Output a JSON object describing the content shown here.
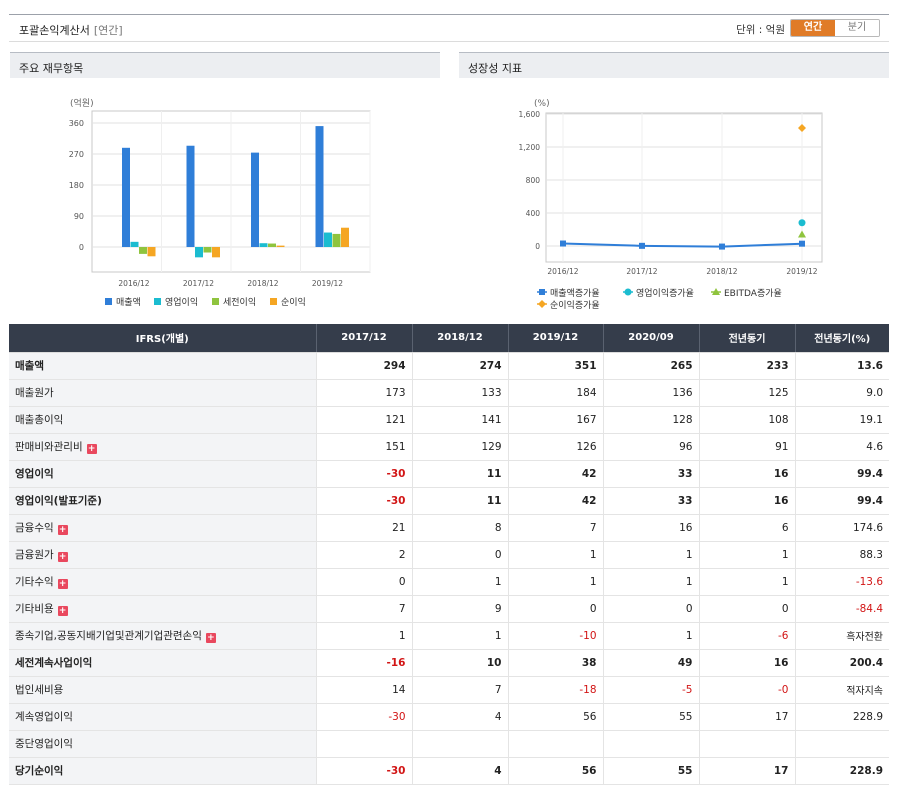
{
  "header": {
    "title": "포괄손익계산서",
    "subtitle": "[연간]",
    "unit_label": "단위 : 억원",
    "toggle": [
      "연간",
      "분기"
    ],
    "toggle_active": 0
  },
  "panel_titles": [
    "주요 재무항목",
    "성장성 지표"
  ],
  "chart_data": [
    {
      "type": "bar",
      "title": "",
      "ylabel": "(억원)",
      "categories": [
        "2016/12",
        "2017/12",
        "2018/12",
        "2019/12"
      ],
      "yticks": [
        "360",
        "270",
        "180",
        "90",
        "0"
      ],
      "ylim": [
        -45,
        390
      ],
      "grid": true,
      "legend_position": "bottom",
      "series": [
        {
          "name": "매출액",
          "color": "#2f7ed8",
          "values": [
            288,
            294,
            274,
            351
          ]
        },
        {
          "name": "영업이익",
          "color": "#1bbcd0",
          "values": [
            15,
            -30,
            11,
            42
          ]
        },
        {
          "name": "세전이익",
          "color": "#8fc43e",
          "values": [
            -20,
            -16,
            10,
            38
          ]
        },
        {
          "name": "순이익",
          "color": "#f5a623",
          "values": [
            -27,
            -30,
            4,
            56
          ]
        }
      ]
    },
    {
      "type": "line",
      "title": "",
      "ylabel": "(%)",
      "categories": [
        "2016/12",
        "2017/12",
        "2018/12",
        "2019/12"
      ],
      "yticks": [
        "1,600",
        "1,200",
        "800",
        "400",
        "0"
      ],
      "ylim": [
        -150,
        1600
      ],
      "grid": true,
      "legend_position": "bottom",
      "series": [
        {
          "name": "매출액증가율",
          "color": "#2f7ed8",
          "marker": "square",
          "values": [
            30,
            2,
            -7,
            28
          ]
        },
        {
          "name": "영업이익증가율",
          "color": "#1bbcd0",
          "marker": "circle",
          "values": [
            null,
            null,
            null,
            282
          ]
        },
        {
          "name": "EBITDA증가율",
          "color": "#8fc43e",
          "marker": "triangle",
          "values": [
            null,
            null,
            null,
            140
          ]
        },
        {
          "name": "순이익증가율",
          "color": "#f5a623",
          "marker": "diamond",
          "values": [
            null,
            null,
            null,
            1430
          ]
        }
      ]
    }
  ],
  "table": {
    "columns": [
      "IFRS(개별)",
      "2017/12",
      "2018/12",
      "2019/12",
      "2020/09",
      "전년동기",
      "전년동기(%)"
    ],
    "rows": [
      {
        "label": "매출액",
        "bold": true,
        "plus": false,
        "values": [
          "294",
          "274",
          "351",
          "265",
          "233",
          "13.6"
        ]
      },
      {
        "label": "매출원가",
        "bold": false,
        "plus": false,
        "values": [
          "173",
          "133",
          "184",
          "136",
          "125",
          "9.0"
        ]
      },
      {
        "label": "매출총이익",
        "bold": false,
        "plus": false,
        "values": [
          "121",
          "141",
          "167",
          "128",
          "108",
          "19.1"
        ]
      },
      {
        "label": "판매비와관리비",
        "bold": false,
        "plus": true,
        "values": [
          "151",
          "129",
          "126",
          "96",
          "91",
          "4.6"
        ]
      },
      {
        "label": "영업이익",
        "bold": true,
        "plus": false,
        "values": [
          "-30",
          "11",
          "42",
          "33",
          "16",
          "99.4"
        ]
      },
      {
        "label": "영업이익(발표기준)",
        "bold": true,
        "plus": false,
        "values": [
          "-30",
          "11",
          "42",
          "33",
          "16",
          "99.4"
        ]
      },
      {
        "label": "금융수익",
        "bold": false,
        "plus": true,
        "values": [
          "21",
          "8",
          "7",
          "16",
          "6",
          "174.6"
        ]
      },
      {
        "label": "금융원가",
        "bold": false,
        "plus": true,
        "values": [
          "2",
          "0",
          "1",
          "1",
          "1",
          "88.3"
        ]
      },
      {
        "label": "기타수익",
        "bold": false,
        "plus": true,
        "values": [
          "0",
          "1",
          "1",
          "1",
          "1",
          "-13.6"
        ]
      },
      {
        "label": "기타비용",
        "bold": false,
        "plus": true,
        "values": [
          "7",
          "9",
          "0",
          "0",
          "0",
          "-84.4"
        ]
      },
      {
        "label": "종속기업,공동지배기업및관계기업관련손익",
        "bold": false,
        "plus": true,
        "values": [
          "1",
          "1",
          "-10",
          "1",
          "-6",
          "흑자전환"
        ]
      },
      {
        "label": "세전계속사업이익",
        "bold": true,
        "plus": false,
        "values": [
          "-16",
          "10",
          "38",
          "49",
          "16",
          "200.4"
        ]
      },
      {
        "label": "법인세비용",
        "bold": false,
        "plus": false,
        "values": [
          "14",
          "7",
          "-18",
          "-5",
          "-0",
          "적자지속"
        ]
      },
      {
        "label": "계속영업이익",
        "bold": false,
        "plus": false,
        "values": [
          "-30",
          "4",
          "56",
          "55",
          "17",
          "228.9"
        ]
      },
      {
        "label": "중단영업이익",
        "bold": false,
        "plus": false,
        "values": [
          "",
          "",
          "",
          "",
          "",
          ""
        ]
      },
      {
        "label": "당기순이익",
        "bold": true,
        "plus": false,
        "values": [
          "-30",
          "4",
          "56",
          "55",
          "17",
          "228.9"
        ]
      }
    ]
  }
}
